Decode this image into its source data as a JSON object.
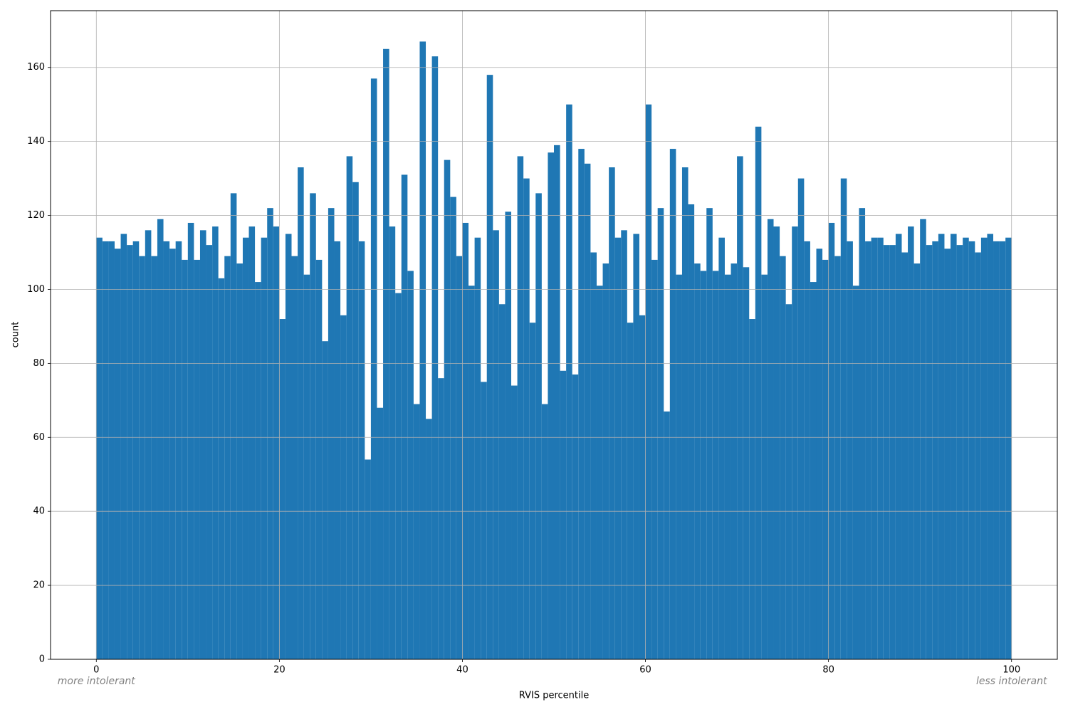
{
  "chart_data": {
    "type": "histogram",
    "x_label": "RVIS percentile",
    "y_label": "count",
    "annotations": [
      "more intolerant",
      "less intolerant"
    ],
    "color": "#1f77b4",
    "grid": true,
    "xlim": [
      -5,
      105
    ],
    "ylim": [
      0,
      175.35
    ],
    "xticks": [
      0,
      20,
      40,
      60,
      80,
      100
    ],
    "yticks": [
      0,
      20,
      40,
      60,
      80,
      100,
      120,
      140,
      160
    ],
    "bins": [
      0,
      0.6667,
      1.3333,
      2,
      2.6667,
      3.3333,
      4,
      4.6667,
      5.3333,
      6,
      6.6667,
      7.3333,
      8,
      8.6667,
      9.3333,
      10,
      10.6667,
      11.3333,
      12,
      12.6667,
      13.3333,
      14,
      14.6667,
      15.3333,
      16,
      16.6667,
      17.3333,
      18,
      18.6667,
      19.3333,
      20,
      20.6667,
      21.3333,
      22,
      22.6667,
      23.3333,
      24,
      24.6667,
      25.3333,
      26,
      26.6667,
      27.3333,
      28,
      28.6667,
      29.3333,
      30,
      30.6667,
      31.3333,
      32,
      32.6667,
      33.3333,
      34,
      34.6667,
      35.3333,
      36,
      36.6667,
      37.3333,
      38,
      38.6667,
      39.3333,
      40,
      40.6667,
      41.3333,
      42,
      42.6667,
      43.3333,
      44,
      44.6667,
      45.3333,
      46,
      46.6667,
      47.3333,
      48,
      48.6667,
      49.3333,
      50,
      50.6667,
      51.3333,
      52,
      52.6667,
      53.3333,
      54,
      54.6667,
      55.3333,
      56,
      56.6667,
      57.3333,
      58,
      58.6667,
      59.3333,
      60,
      60.6667,
      61.3333,
      62,
      62.6667,
      63.3333,
      64,
      64.6667,
      65.3333,
      66,
      66.6667,
      67.3333,
      68,
      68.6667,
      69.3333,
      70,
      70.6667,
      71.3333,
      72,
      72.6667,
      73.3333,
      74,
      74.6667,
      75.3333,
      76,
      76.6667,
      77.3333,
      78,
      78.6667,
      79.3333,
      80,
      80.6667,
      81.3333,
      82,
      82.6667,
      83.3333,
      84,
      84.6667,
      85.3333,
      86,
      86.6667,
      87.3333,
      88,
      88.6667,
      89.3333,
      90,
      90.6667,
      91.3333,
      92,
      92.6667,
      93.3333,
      94,
      94.6667,
      95.3333,
      96,
      96.6667,
      97.3333,
      98,
      98.6667,
      99.3333,
      100
    ],
    "counts": [
      114,
      113,
      113,
      111,
      115,
      112,
      113,
      109,
      116,
      109,
      119,
      113,
      111,
      113,
      108,
      118,
      108,
      116,
      112,
      117,
      103,
      109,
      126,
      107,
      114,
      117,
      102,
      114,
      122,
      117,
      92,
      115,
      109,
      133,
      104,
      126,
      108,
      86,
      122,
      113,
      93,
      136,
      129,
      113,
      54,
      157,
      68,
      165,
      117,
      99,
      131,
      105,
      69,
      167,
      65,
      163,
      76,
      135,
      125,
      109,
      118,
      101,
      114,
      75,
      158,
      116,
      96,
      121,
      74,
      136,
      130,
      91,
      126,
      69,
      137,
      139,
      78,
      150,
      77,
      138,
      134,
      110,
      101,
      107,
      133,
      114,
      116,
      91,
      115,
      93,
      150,
      108,
      122,
      67,
      138,
      104,
      133,
      123,
      107,
      105,
      122,
      105,
      114,
      104,
      107,
      136,
      106,
      92,
      144,
      104,
      119,
      117,
      109,
      96,
      117,
      130,
      113,
      102,
      111,
      108,
      118,
      109,
      130,
      113,
      101,
      122,
      113,
      114,
      114,
      112,
      112,
      115,
      110,
      117,
      107,
      119,
      112,
      113,
      115,
      111,
      115,
      112,
      114,
      113,
      110,
      114,
      115,
      113,
      113,
      114
    ]
  }
}
